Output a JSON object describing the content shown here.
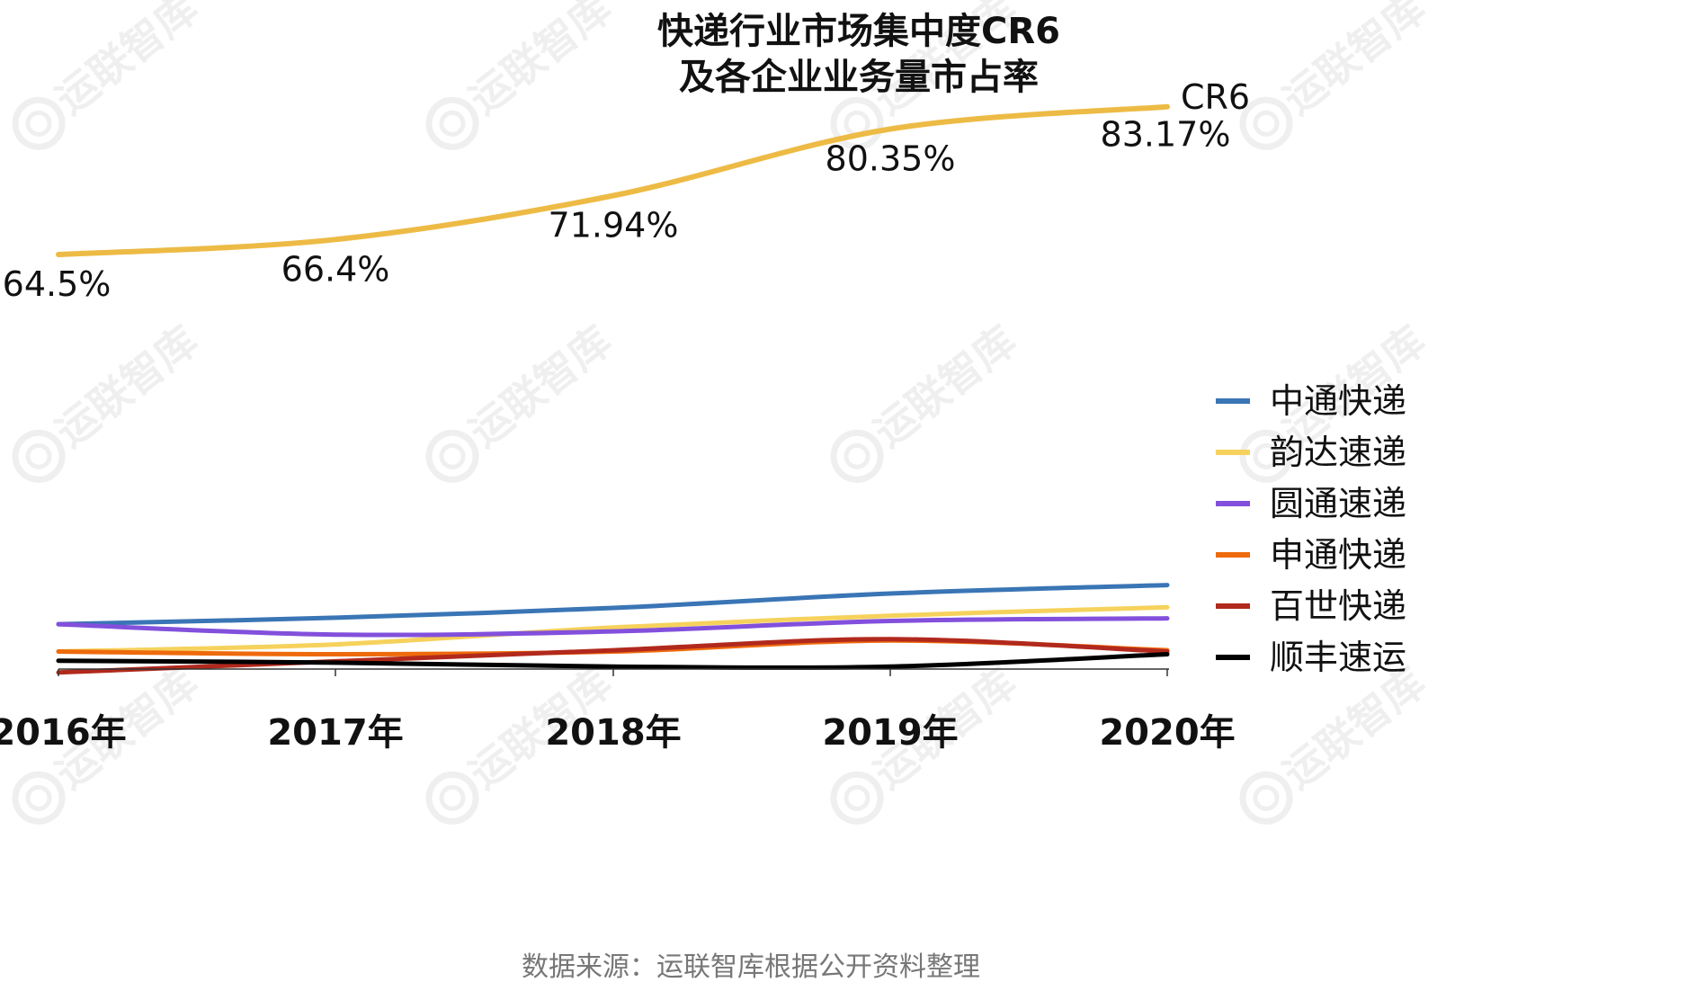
{
  "watermark": {
    "text": "运联智库"
  },
  "source_note": "数据来源：运联智库根据公开资料整理",
  "chart_data": [
    {
      "type": "line",
      "title": "快递行业市场集中度CR6",
      "subtitle": "及各企业业务量市占率",
      "x": [
        "2016年",
        "2017年",
        "2018年",
        "2019年",
        "2020年"
      ],
      "series": [
        {
          "name": "CR6",
          "values": [
            64.5,
            66.4,
            71.94,
            80.35,
            83.17
          ],
          "data_labels": [
            "64.5%",
            "66.4%",
            "71.94%",
            "80.35%",
            "83.17%"
          ],
          "color": "#EDBB45"
        }
      ],
      "ylim": [
        60,
        90
      ],
      "xlabel": "",
      "ylabel": "",
      "grid": false
    },
    {
      "type": "line",
      "x": [
        "2016年",
        "2017年",
        "2018年",
        "2019年",
        "2020年"
      ],
      "series": [
        {
          "name": "中通快递",
          "color": "#3A75B5",
          "values": [
            14.4,
            15.4,
            16.9,
            19.1,
            20.4
          ]
        },
        {
          "name": "韵达速递",
          "color": "#F6D25C",
          "values": [
            10.2,
            11.3,
            13.9,
            15.7,
            17.0
          ]
        },
        {
          "name": "圆通速递",
          "color": "#8250DC",
          "values": [
            14.4,
            12.8,
            13.3,
            14.9,
            15.3
          ]
        },
        {
          "name": "申通快递",
          "color": "#EE6A0C",
          "values": [
            10.2,
            9.8,
            10.2,
            11.9,
            10.4
          ]
        },
        {
          "name": "百世快递",
          "color": "#B1291C",
          "values": [
            7.0,
            8.7,
            10.4,
            12.1,
            10.2
          ]
        },
        {
          "name": "顺丰速运",
          "color": "#000000",
          "values": [
            8.8,
            8.5,
            7.9,
            7.9,
            9.8
          ]
        }
      ],
      "ylim": [
        7,
        22
      ],
      "legend": "right",
      "grid": false
    }
  ]
}
